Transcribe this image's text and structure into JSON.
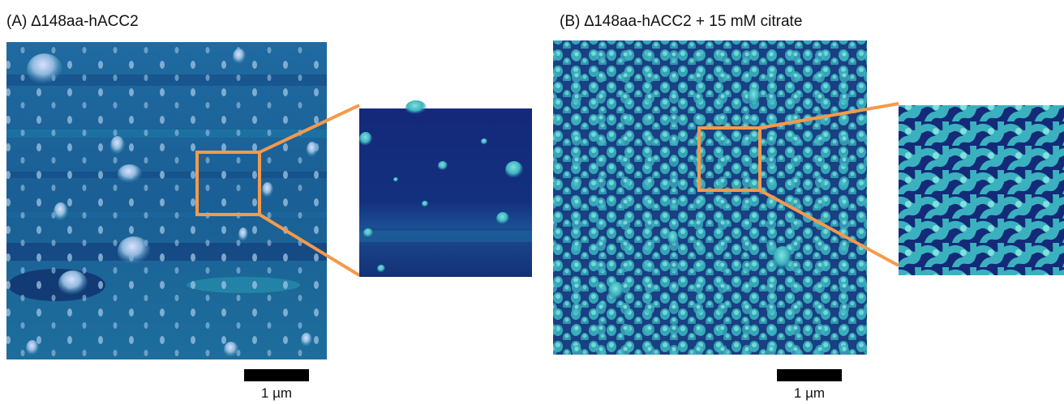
{
  "panels": [
    {
      "title": "(A) ∆148aa-hACC2",
      "scale_bar": {
        "label": "1 µm"
      }
    },
    {
      "title": "(B) ∆148aa-hACC2 + 15 mM citrate",
      "scale_bar": {
        "label": "1 µm"
      }
    }
  ],
  "colors": {
    "highlight_box": "#f59a4a",
    "surface_dark": "#12246b",
    "surface_mid": "#1e6f9b",
    "peak": "#c9d3f4",
    "scale_bar": "#000000"
  }
}
